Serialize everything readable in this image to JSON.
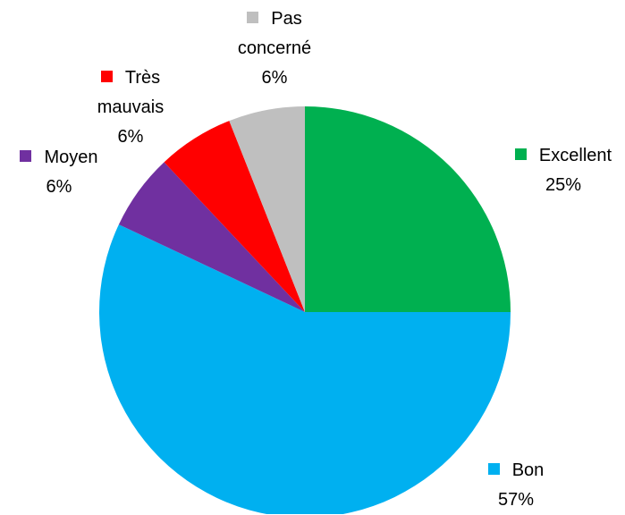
{
  "chart_data": {
    "type": "pie",
    "categories": [
      "Excellent",
      "Bon",
      "Moyen",
      "Très mauvais",
      "Pas concerné"
    ],
    "values": [
      25,
      57,
      6,
      6,
      6
    ],
    "value_labels": [
      "25%",
      "57%",
      "6%",
      "6%",
      "6%"
    ],
    "colors": [
      "#00b050",
      "#00b0f0",
      "#7030a0",
      "#ff0000",
      "#bfbfbf"
    ]
  }
}
